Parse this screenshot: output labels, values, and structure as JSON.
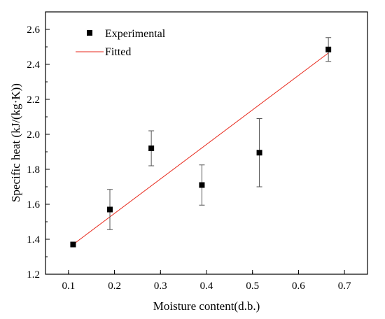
{
  "chart_data": {
    "type": "scatter",
    "xlabel": "Moisture content(d.b.)",
    "ylabel": "Specific heat (kJ/(kg·K))",
    "xlim": [
      0.05,
      0.75
    ],
    "ylim": [
      1.2,
      2.7
    ],
    "x_ticks": [
      "0.1",
      "0.2",
      "0.3",
      "0.4",
      "0.5",
      "0.6",
      "0.7"
    ],
    "y_ticks": [
      "1.2",
      "1.4",
      "1.6",
      "1.8",
      "2.0",
      "2.2",
      "2.4",
      "2.6"
    ],
    "grid": false,
    "legend_position": "top-left",
    "series": [
      {
        "name": "Experimental",
        "kind": "points-with-error-bars",
        "color": "#000000",
        "points": [
          {
            "x": 0.11,
            "y": 1.37,
            "err": 0.0
          },
          {
            "x": 0.19,
            "y": 1.57,
            "err": 0.115
          },
          {
            "x": 0.28,
            "y": 1.92,
            "err": 0.1
          },
          {
            "x": 0.39,
            "y": 1.71,
            "err": 0.115
          },
          {
            "x": 0.515,
            "y": 1.895,
            "err": 0.195
          },
          {
            "x": 0.665,
            "y": 2.485,
            "err": 0.068
          }
        ]
      },
      {
        "name": "Fitted",
        "kind": "line",
        "color": "#e8291c",
        "points": [
          {
            "x": 0.11,
            "y": 1.37
          },
          {
            "x": 0.665,
            "y": 2.465
          }
        ]
      }
    ]
  }
}
